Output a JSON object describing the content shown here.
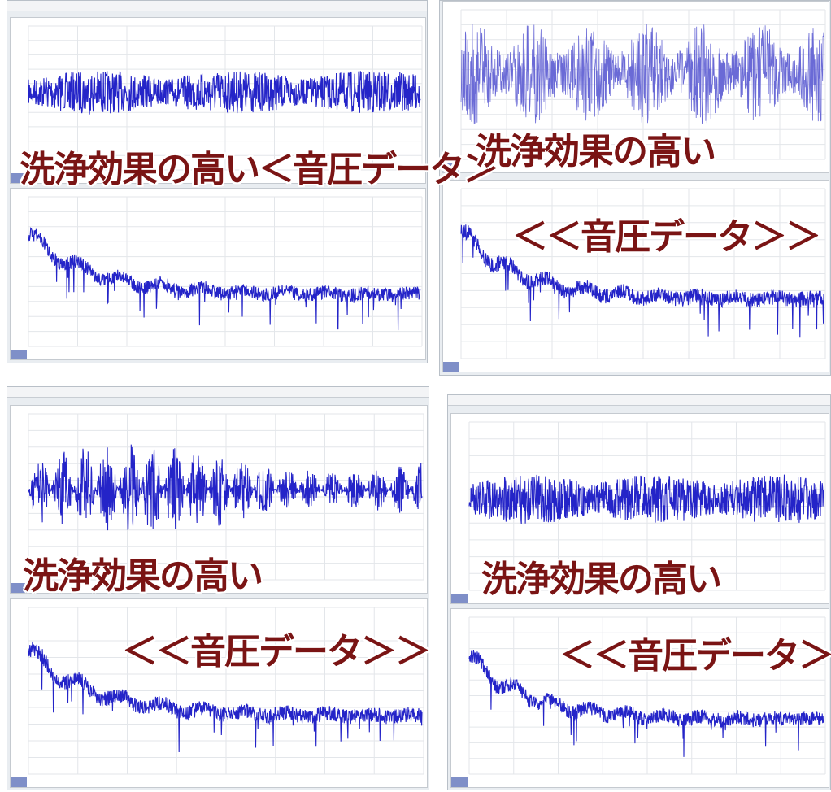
{
  "panels": [
    {
      "captions": [
        "洗浄効果の高い＜音圧データ＞"
      ]
    },
    {
      "captions": [
        "洗浄効果の高い",
        "＜＜音圧データ＞＞"
      ]
    },
    {
      "captions": [
        "洗浄効果の高い",
        "＜＜音圧データ＞＞"
      ]
    },
    {
      "captions": [
        "洗浄効果の高い",
        "＜＜音圧データ＞＞"
      ]
    }
  ]
}
